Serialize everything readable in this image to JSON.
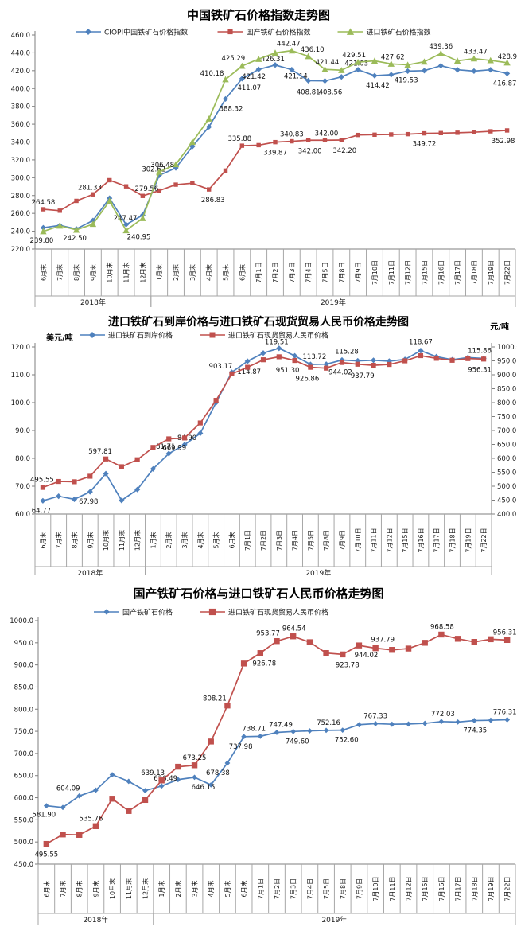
{
  "chart_data": [
    {
      "type": "line",
      "title": "中国铁矿石价格指数走势图",
      "categories": [
        "6月末",
        "7月末",
        "8月末",
        "9月末",
        "10月末",
        "11月末",
        "12月末",
        "1月末",
        "2月末",
        "3月末",
        "4月末",
        "5月末",
        "6月末",
        "7月1日",
        "7月2日",
        "7月3日",
        "7月4日",
        "7月5日",
        "7月8日",
        "7月9日",
        "7月10日",
        "7月11日",
        "7月12日",
        "7月15日",
        "7月16日",
        "7月17日",
        "7月18日",
        "7月19日",
        "7月22日"
      ],
      "year_groups": [
        {
          "label": "2018年",
          "count": 7
        },
        {
          "label": "2019年",
          "count": 22
        }
      ],
      "y_axis": {
        "min": 220,
        "max": 460,
        "step": 20
      },
      "legend_position": "top",
      "grid": false,
      "series": [
        {
          "name": "CIOPI中国铁矿石价格指数",
          "color": "#4F81BD",
          "marker": "diamond",
          "axis": "left",
          "values": [
            243.9,
            246.5,
            242.5,
            252,
            277,
            247.47,
            258,
            302.62,
            311,
            335,
            357,
            388.32,
            411.07,
            421.42,
            426.31,
            421.14,
            408.81,
            408.56,
            413,
            421.03,
            414.42,
            415.5,
            419.53,
            420,
            425.5,
            421,
            419.5,
            421,
            416.87
          ],
          "labels": [
            {
              "i": 2,
              "t": "242.50",
              "dx": -2,
              "dy": 14
            },
            {
              "i": 5,
              "t": "247.47",
              "dx": -1,
              "dy": -5
            },
            {
              "i": 7,
              "t": "302.62",
              "dx": -7,
              "dy": -5
            },
            {
              "i": 11,
              "t": "388.32",
              "dx": 7,
              "dy": 15
            },
            {
              "i": 12,
              "t": "411.07",
              "dx": 9,
              "dy": 14
            },
            {
              "i": 13,
              "t": "421.42",
              "dx": -6,
              "dy": 12
            },
            {
              "i": 14,
              "t": "426.31",
              "dx": -3,
              "dy": -5
            },
            {
              "i": 15,
              "t": "421.14",
              "dx": 5,
              "dy": 11
            },
            {
              "i": 16,
              "t": "408.81",
              "dx": 0,
              "dy": 17
            },
            {
              "i": 17,
              "t": "408.56",
              "dx": 7,
              "dy": 17
            },
            {
              "i": 19,
              "t": "421.03",
              "dx": -2,
              "dy": -5
            },
            {
              "i": 20,
              "t": "414.42",
              "dx": 4,
              "dy": 15
            },
            {
              "i": 22,
              "t": "419.53",
              "dx": -2,
              "dy": 14
            },
            {
              "i": 28,
              "t": "416.87",
              "dx": -3,
              "dy": 15
            }
          ]
        },
        {
          "name": "国产铁矿石价格指数",
          "color": "#C0504D",
          "marker": "square",
          "axis": "left",
          "values": [
            264.58,
            263,
            274,
            281.33,
            297.2,
            290.3,
            279.56,
            285.5,
            292.2,
            293.8,
            286.83,
            308,
            335.88,
            336.5,
            339.87,
            340.83,
            342,
            342,
            342.2,
            347.9,
            348.2,
            348.5,
            348.8,
            349.72,
            350,
            350.4,
            351,
            352,
            352.98
          ],
          "labels": [
            {
              "i": 0,
              "t": "264.58",
              "dx": 0,
              "dy": -6
            },
            {
              "i": 3,
              "t": "281.33",
              "dx": -4,
              "dy": -6
            },
            {
              "i": 6,
              "t": "279.56",
              "dx": 5,
              "dy": -6
            },
            {
              "i": 10,
              "t": "286.83",
              "dx": 5,
              "dy": 16
            },
            {
              "i": 12,
              "t": "335.88",
              "dx": -3,
              "dy": -6
            },
            {
              "i": 14,
              "t": "339.87",
              "dx": 0,
              "dy": 16
            },
            {
              "i": 15,
              "t": "340.83",
              "dx": 0,
              "dy": -6
            },
            {
              "i": 16,
              "t": "342.00",
              "dx": 2,
              "dy": 16
            },
            {
              "i": 17,
              "t": "342.00",
              "dx": 2,
              "dy": -6
            },
            {
              "i": 18,
              "t": "342.20",
              "dx": 4,
              "dy": 16
            },
            {
              "i": 23,
              "t": "349.72",
              "dx": 0,
              "dy": 16
            },
            {
              "i": 28,
              "t": "352.98",
              "dx": -5,
              "dy": 16
            }
          ]
        },
        {
          "name": "进口铁矿石价格指数",
          "color": "#9BBB59",
          "marker": "triangle",
          "axis": "left",
          "values": [
            239.8,
            246,
            241.5,
            248,
            274,
            240.95,
            254.5,
            306.48,
            315,
            340,
            366,
            410.18,
            425.29,
            433,
            440,
            442.47,
            436.1,
            421.44,
            420.5,
            429.51,
            431,
            427.62,
            426.5,
            430,
            439.36,
            431,
            433.47,
            431.5,
            428.95
          ],
          "labels": [
            {
              "i": 0,
              "t": "239.80",
              "dx": -2,
              "dy": 14
            },
            {
              "i": 5,
              "t": "240.95",
              "dx": 16,
              "dy": 11
            },
            {
              "i": 7,
              "t": "306.48",
              "dx": 4,
              "dy": -6
            },
            {
              "i": 11,
              "t": "410.18",
              "dx": -17,
              "dy": -5
            },
            {
              "i": 12,
              "t": "425.29",
              "dx": -11,
              "dy": -7
            },
            {
              "i": 15,
              "t": "442.47",
              "dx": -4,
              "dy": -6
            },
            {
              "i": 16,
              "t": "436.10",
              "dx": 5,
              "dy": -6
            },
            {
              "i": 17,
              "t": "421.44",
              "dx": 3,
              "dy": -6
            },
            {
              "i": 19,
              "t": "429.51",
              "dx": -5,
              "dy": -6
            },
            {
              "i": 21,
              "t": "427.62",
              "dx": 2,
              "dy": -6
            },
            {
              "i": 24,
              "t": "439.36",
              "dx": 0,
              "dy": -6
            },
            {
              "i": 26,
              "t": "433.47",
              "dx": 2,
              "dy": -6
            },
            {
              "i": 28,
              "t": "428.95",
              "dx": 3,
              "dy": -5
            }
          ]
        }
      ]
    },
    {
      "type": "line",
      "title": "进口铁矿石到岸价格与进口铁矿石现货贸易人民币价格走势图",
      "y_left_title": "美元/吨",
      "y_right_title": "元/吨",
      "categories": [
        "6月末",
        "7月末",
        "8月末",
        "9月末",
        "10月末",
        "11月末",
        "12月末",
        "1月末",
        "2月末",
        "3月末",
        "4月末",
        "5月末",
        "6月末",
        "7月1日",
        "7月2日",
        "7月3日",
        "7月4日",
        "7月5日",
        "7月8日",
        "7月9日",
        "7月10日",
        "7月11日",
        "7月12日",
        "7月15日",
        "7月16日",
        "7月17日",
        "7月18日",
        "7月19日",
        "7月22日"
      ],
      "year_groups": [
        {
          "label": "2018年",
          "count": 7
        },
        {
          "label": "2019年",
          "count": 22
        }
      ],
      "y_axis": {
        "min": 60,
        "max": 120,
        "step": 10
      },
      "y_axis_right": {
        "min": 400,
        "max": 1000,
        "step": 50
      },
      "legend_position": "top",
      "grid": false,
      "series": [
        {
          "name": "进口铁矿石到岸价格",
          "color": "#4F81BD",
          "marker": "diamond",
          "axis": "left",
          "values": [
            64.77,
            66.4,
            65.3,
            67.98,
            74.5,
            64.9,
            68.8,
            76.2,
            81.71,
            84.9,
            89,
            100,
            110.9,
            114.87,
            117.8,
            119.51,
            116.8,
            113.72,
            113.8,
            115.28,
            115,
            115.2,
            114.9,
            115.5,
            118.67,
            116.5,
            115.4,
            116.2,
            115.86
          ],
          "labels": [
            {
              "i": 0,
              "t": "64.77",
              "dx": -2,
              "dy": 15
            },
            {
              "i": 3,
              "t": "67.98",
              "dx": -2,
              "dy": 15
            },
            {
              "i": 8,
              "t": "81.71",
              "dx": -4,
              "dy": -6
            },
            {
              "i": 9,
              "t": "84.90",
              "dx": 3,
              "dy": -6
            },
            {
              "i": 13,
              "t": "114.87",
              "dx": 2,
              "dy": 16
            },
            {
              "i": 15,
              "t": "119.51",
              "dx": -3,
              "dy": -5
            },
            {
              "i": 17,
              "t": "113.72",
              "dx": 5,
              "dy": -7
            },
            {
              "i": 19,
              "t": "115.28",
              "dx": 6,
              "dy": -8
            },
            {
              "i": 24,
              "t": "118.67",
              "dx": 0,
              "dy": -8
            },
            {
              "i": 28,
              "t": "115.86",
              "dx": -5,
              "dy": -7
            }
          ]
        },
        {
          "name": "进口铁矿石现货贸易人民币价格",
          "color": "#C0504D",
          "marker": "square",
          "axis": "right",
          "values": [
            495.55,
            517,
            516,
            535.76,
            597.81,
            570,
            595,
            639.13,
            669.99,
            673.25,
            727,
            808.21,
            903.17,
            926.78,
            953.77,
            964.54,
            951.3,
            926.86,
            923.78,
            944.02,
            937.79,
            934,
            937,
            950,
            968.58,
            959,
            952,
            958,
            956.31
          ],
          "labels": [
            {
              "i": 0,
              "t": "495.55",
              "dx": -1,
              "dy": -7
            },
            {
              "i": 4,
              "t": "597.81",
              "dx": -7,
              "dy": -7
            },
            {
              "i": 8,
              "t": "669.99",
              "dx": 7,
              "dy": 14
            },
            {
              "i": 12,
              "t": "903.17",
              "dx": -14,
              "dy": -7
            },
            {
              "i": 16,
              "t": "951.30",
              "dx": -9,
              "dy": 15
            },
            {
              "i": 17,
              "t": "926.86",
              "dx": -4,
              "dy": 17
            },
            {
              "i": 19,
              "t": "944.02",
              "dx": -2,
              "dy": 15
            },
            {
              "i": 20,
              "t": "937.79",
              "dx": 6,
              "dy": 17
            },
            {
              "i": 28,
              "t": "956.31",
              "dx": -5,
              "dy": 16
            }
          ]
        }
      ]
    },
    {
      "type": "line",
      "title": "国产铁矿石价格与进口铁矿石人民币价格走势图",
      "categories": [
        "6月末",
        "7月末",
        "8月末",
        "9月末",
        "10月末",
        "11月末",
        "12月末",
        "1月末",
        "2月末",
        "3月末",
        "4月末",
        "5月末",
        "6月末",
        "7月1日",
        "7月2日",
        "7月3日",
        "7月4日",
        "7月5日",
        "7月8日",
        "7月9日",
        "7月10日",
        "7月11日",
        "7月12日",
        "7月15日",
        "7月16日",
        "7月17日",
        "7月18日",
        "7月19日",
        "7月22日"
      ],
      "year_groups": [
        {
          "label": "2018年",
          "count": 7
        },
        {
          "label": "2019年",
          "count": 22
        }
      ],
      "y_axis": {
        "min": 450,
        "max": 1000,
        "step": 50
      },
      "legend_position": "top",
      "grid": false,
      "series": [
        {
          "name": "国产铁矿石价格",
          "color": "#4F81BD",
          "marker": "diamond",
          "axis": "left",
          "values": [
            581.9,
            578,
            604.09,
            617,
            652,
            637,
            616,
            626.49,
            641,
            646.15,
            629,
            678.38,
            737.98,
            738.71,
            747.49,
            749.6,
            751,
            752.16,
            752.6,
            765,
            767.33,
            766,
            766.5,
            768,
            772.03,
            771,
            774.35,
            775,
            776.31
          ],
          "labels": [
            {
              "i": 0,
              "t": "581.90",
              "dx": -3,
              "dy": 14
            },
            {
              "i": 2,
              "t": "604.09",
              "dx": -14,
              "dy": -7
            },
            {
              "i": 7,
              "t": "626.49",
              "dx": 5,
              "dy": -7
            },
            {
              "i": 9,
              "t": "646.15",
              "dx": 11,
              "dy": 15
            },
            {
              "i": 11,
              "t": "678.38",
              "dx": -12,
              "dy": 15
            },
            {
              "i": 12,
              "t": "737.98",
              "dx": -4,
              "dy": 15
            },
            {
              "i": 13,
              "t": "738.71",
              "dx": -8,
              "dy": -7
            },
            {
              "i": 14,
              "t": "747.49",
              "dx": 5,
              "dy": -7
            },
            {
              "i": 15,
              "t": "749.60",
              "dx": 5,
              "dy": 15
            },
            {
              "i": 17,
              "t": "752.16",
              "dx": 3,
              "dy": -7
            },
            {
              "i": 18,
              "t": "752.60",
              "dx": 5,
              "dy": 15
            },
            {
              "i": 20,
              "t": "767.33",
              "dx": 0,
              "dy": -7
            },
            {
              "i": 24,
              "t": "772.03",
              "dx": 2,
              "dy": -7
            },
            {
              "i": 26,
              "t": "774.35",
              "dx": 1,
              "dy": 15
            },
            {
              "i": 28,
              "t": "776.31",
              "dx": -3,
              "dy": -7
            }
          ]
        },
        {
          "name": "进口铁矿石现货贸易人民币价格",
          "color": "#C0504D",
          "marker": "square",
          "axis": "left",
          "values": [
            495.55,
            517,
            516,
            535.76,
            597.81,
            570,
            595,
            639.13,
            669.99,
            673.25,
            727,
            808.21,
            903.17,
            926.78,
            953.77,
            964.54,
            951.3,
            926.86,
            923.78,
            944.02,
            937.79,
            934,
            937,
            950,
            968.58,
            959,
            952,
            958,
            956.31
          ],
          "labels": [
            {
              "i": 0,
              "t": "495.55",
              "dx": 0,
              "dy": 16
            },
            {
              "i": 3,
              "t": "535.76",
              "dx": -6,
              "dy": -7
            },
            {
              "i": 7,
              "t": "639.13",
              "dx": -11,
              "dy": -7
            },
            {
              "i": 9,
              "t": "673.25",
              "dx": 0,
              "dy": -7
            },
            {
              "i": 11,
              "t": "808.21",
              "dx": -16,
              "dy": -6
            },
            {
              "i": 13,
              "t": "926.78",
              "dx": 5,
              "dy": 16
            },
            {
              "i": 14,
              "t": "953.77",
              "dx": -11,
              "dy": -7
            },
            {
              "i": 15,
              "t": "964.54",
              "dx": 1,
              "dy": -7
            },
            {
              "i": 18,
              "t": "923.78",
              "dx": 6,
              "dy": 16
            },
            {
              "i": 19,
              "t": "944.02",
              "dx": 9,
              "dy": 15
            },
            {
              "i": 20,
              "t": "937.79",
              "dx": 9,
              "dy": -8
            },
            {
              "i": 24,
              "t": "968.58",
              "dx": 1,
              "dy": -7
            },
            {
              "i": 28,
              "t": "956.31",
              "dx": -3,
              "dy": -7
            }
          ]
        }
      ]
    }
  ]
}
